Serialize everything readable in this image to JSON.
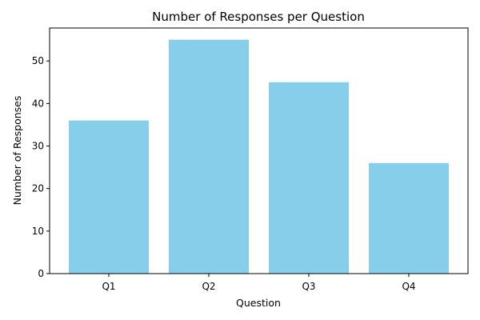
{
  "chart_data": {
    "type": "bar",
    "title": "Number of Responses per Question",
    "xlabel": "Question",
    "ylabel": "Number of Responses",
    "categories": [
      "Q1",
      "Q2",
      "Q3",
      "Q4"
    ],
    "values": [
      36,
      55,
      45,
      26
    ],
    "ylim": [
      0,
      57.75
    ],
    "yticks": [
      0,
      10,
      20,
      30,
      40,
      50
    ],
    "bar_color": "#87ceeb",
    "grid": false,
    "legend": "none"
  }
}
